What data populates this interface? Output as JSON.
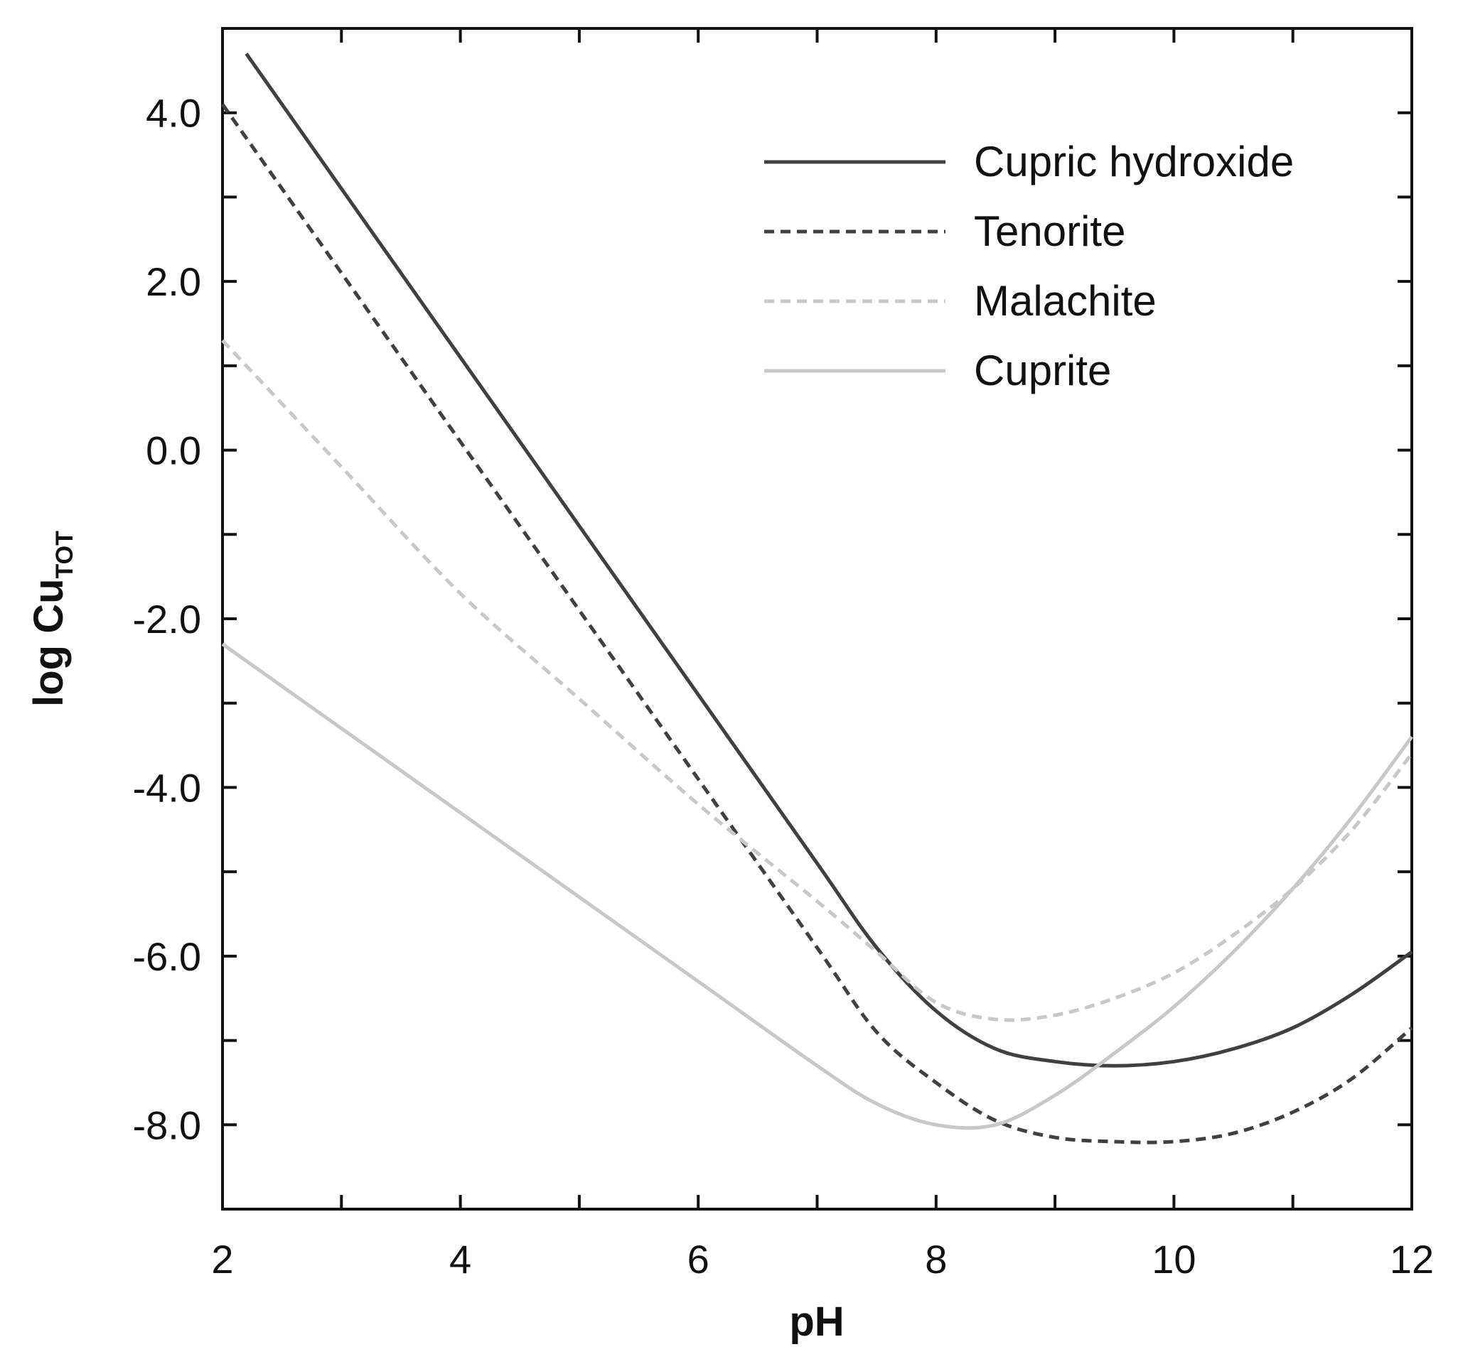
{
  "chart_data": {
    "type": "line",
    "xlabel": "pH",
    "ylabel_main": "log Cu",
    "ylabel_sub": "TOT",
    "xlim": [
      2,
      12
    ],
    "ylim": [
      -9,
      5
    ],
    "x_ticks": [
      2,
      4,
      6,
      8,
      10,
      12
    ],
    "x_tick_labels": [
      "2",
      "4",
      "6",
      "8",
      "10",
      "12"
    ],
    "x_minor_ticks": [
      3,
      5,
      7,
      9,
      11
    ],
    "y_ticks": [
      4,
      2,
      0,
      -2,
      -4,
      -6,
      -8
    ],
    "y_tick_labels": [
      "4.0",
      "2.0",
      "0.0",
      "-2.0",
      "-4.0",
      "-6.0",
      "-8.0"
    ],
    "y_minor_ticks": [
      3,
      1,
      -1,
      -3,
      -5,
      -7
    ],
    "grid": false,
    "legend_position": "top-right",
    "series": [
      {
        "name": "Cupric hydroxide",
        "color": "#404040",
        "style": "solid",
        "x": [
          2.2,
          3,
          4,
          5,
          6,
          7,
          7.5,
          8,
          8.5,
          9,
          9.5,
          10,
          10.5,
          11,
          11.5,
          12
        ],
        "y": [
          4.7,
          3.1,
          1.1,
          -0.9,
          -2.9,
          -4.9,
          -5.9,
          -6.65,
          -7.1,
          -7.25,
          -7.3,
          -7.25,
          -7.1,
          -6.85,
          -6.45,
          -5.95
        ]
      },
      {
        "name": "Tenorite",
        "color": "#404040",
        "style": "dashed",
        "x": [
          2,
          3,
          4,
          5,
          6,
          7,
          7.5,
          8,
          8.5,
          9,
          9.5,
          10,
          10.5,
          11,
          11.5,
          12
        ],
        "y": [
          4.1,
          2.1,
          0.1,
          -1.9,
          -3.9,
          -5.9,
          -6.9,
          -7.5,
          -7.95,
          -8.15,
          -8.2,
          -8.2,
          -8.1,
          -7.85,
          -7.45,
          -6.85
        ]
      },
      {
        "name": "Malachite",
        "color": "#c8c8c8",
        "style": "dashed",
        "x": [
          2,
          3,
          4,
          5,
          6,
          7,
          7.5,
          8,
          8.5,
          9,
          9.5,
          10,
          10.5,
          11,
          11.5,
          12
        ],
        "y": [
          1.3,
          -0.2,
          -1.7,
          -2.95,
          -4.2,
          -5.35,
          -5.95,
          -6.55,
          -6.75,
          -6.7,
          -6.5,
          -6.2,
          -5.75,
          -5.2,
          -4.5,
          -3.6
        ]
      },
      {
        "name": "Cuprite",
        "color": "#c8c8c8",
        "style": "solid",
        "x": [
          2,
          3,
          4,
          5,
          6,
          7,
          7.5,
          8,
          8.5,
          9,
          9.5,
          10,
          10.5,
          11,
          11.5,
          12
        ],
        "y": [
          -2.3,
          -3.3,
          -4.3,
          -5.3,
          -6.3,
          -7.3,
          -7.75,
          -8.0,
          -8.0,
          -7.65,
          -7.15,
          -6.6,
          -5.95,
          -5.2,
          -4.35,
          -3.4
        ]
      }
    ]
  }
}
